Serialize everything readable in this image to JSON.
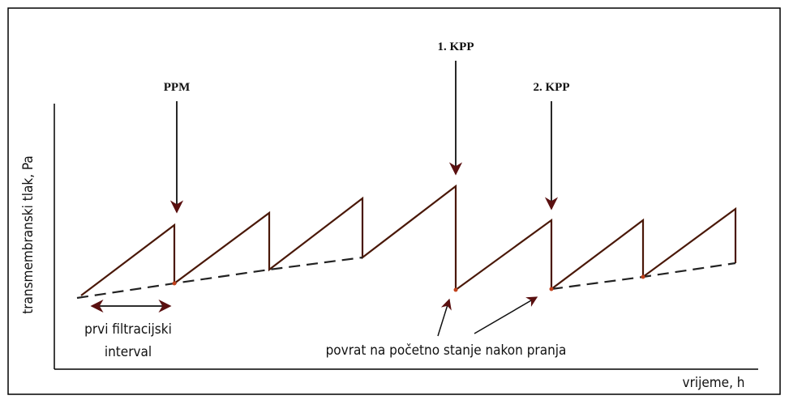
{
  "labels": {
    "ppm": "PPM",
    "kpp1": "1. KPP",
    "kpp2": "2. KPP"
  },
  "axes": {
    "y_label": "transmembranski tlak, Pa",
    "x_label": "vrijeme, h"
  },
  "annotations": {
    "interval_line1": "prvi filtracijski",
    "interval_line2": "interval",
    "recovery": "povrat na početno stanje nakon pranja"
  }
}
